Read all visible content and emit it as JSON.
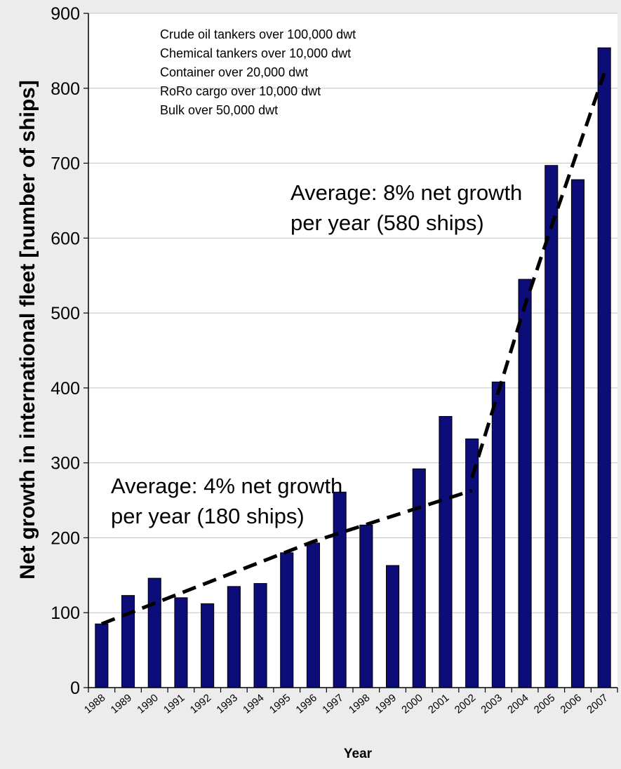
{
  "chart_data": {
    "type": "bar",
    "title": "",
    "xlabel": "Year",
    "ylabel": "Net growth in international fleet [number of ships]",
    "ylim": [
      0,
      900
    ],
    "yticks": [
      0,
      100,
      200,
      300,
      400,
      500,
      600,
      700,
      800,
      900
    ],
    "grid": true,
    "categories": [
      "1988",
      "1989",
      "1990",
      "1991",
      "1992",
      "1993",
      "1994",
      "1995",
      "1996",
      "1997",
      "1998",
      "1999",
      "2000",
      "2001",
      "2002",
      "2003",
      "2004",
      "2005",
      "2006",
      "2007"
    ],
    "series": [
      {
        "values": [
          85,
          123,
          146,
          120,
          112,
          135,
          139,
          180,
          193,
          261,
          217,
          163,
          292,
          362,
          332,
          408,
          545,
          697,
          678,
          854
        ]
      }
    ],
    "bar_color": "#0d0d7a",
    "legend_lines": [
      "Crude oil tankers over 100,000 dwt",
      "Chemical tankers over 10,000 dwt",
      "Container over 20,000 dwt",
      "RoRo cargo over 10,000 dwt",
      "Bulk over 50,000 dwt"
    ],
    "annotations": [
      {
        "lines": [
          "Average: 4% net growth",
          "per year (180 ships)"
        ]
      },
      {
        "lines": [
          "Average: 8% net growth",
          "per year (580 ships)"
        ]
      }
    ],
    "trend_lines": [
      {
        "style": "dashed",
        "points": [
          [
            "1988",
            85
          ],
          [
            "1996",
            195
          ],
          [
            "2002",
            263
          ]
        ]
      },
      {
        "style": "dashed",
        "points": [
          [
            "2002",
            280
          ],
          [
            "2003",
            395
          ],
          [
            "2004",
            510
          ],
          [
            "2005",
            615
          ],
          [
            "2007",
            820
          ]
        ]
      }
    ]
  }
}
